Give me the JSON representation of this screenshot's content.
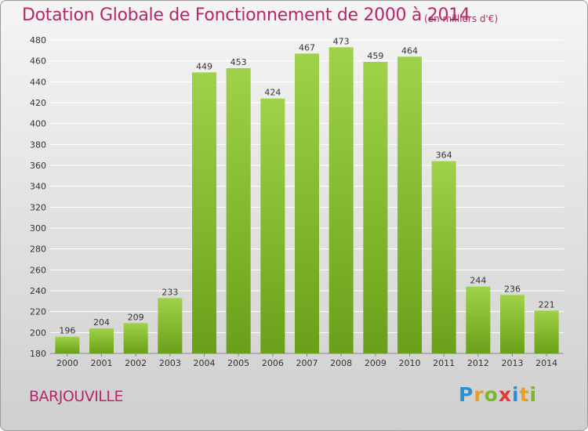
{
  "title": "Dotation Globale de Fonctionnement de 2000 à 2014",
  "unit_note": "(en milliers d'€)",
  "commune": "BARJOUVILLE",
  "logo": {
    "text": "Proxiti",
    "letters": [
      {
        "ch": "P",
        "color": "#2a8fd6"
      },
      {
        "ch": "r",
        "color": "#e8a020"
      },
      {
        "ch": "o",
        "color": "#7ab826"
      },
      {
        "ch": "x",
        "color": "#e03a3a"
      },
      {
        "ch": "i",
        "color": "#2a8fd6"
      },
      {
        "ch": "t",
        "color": "#e8a020"
      },
      {
        "ch": "i",
        "color": "#7ab826"
      }
    ]
  },
  "colors": {
    "bar_top": "#9fd24a",
    "bar_bottom": "#6aa019",
    "grid": "#ffffff",
    "title": "#b8266a"
  },
  "chart_data": {
    "type": "bar",
    "categories": [
      "2000",
      "2001",
      "2002",
      "2003",
      "2004",
      "2005",
      "2006",
      "2007",
      "2008",
      "2009",
      "2010",
      "2011",
      "2012",
      "2013",
      "2014"
    ],
    "values": [
      196,
      204,
      209,
      233,
      449,
      453,
      424,
      467,
      473,
      459,
      464,
      364,
      244,
      236,
      221
    ],
    "ylim": [
      180,
      480
    ],
    "yticks": [
      180,
      200,
      220,
      240,
      260,
      280,
      300,
      320,
      340,
      360,
      380,
      400,
      420,
      440,
      460,
      480
    ],
    "grid": true,
    "legend": "none"
  }
}
